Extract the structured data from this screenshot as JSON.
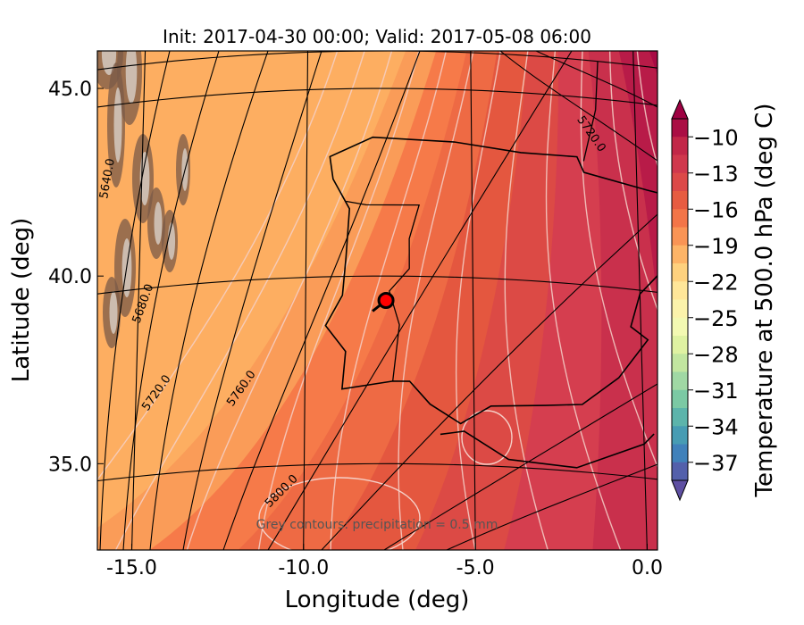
{
  "chart_data": {
    "type": "heatmap",
    "title": "Init: 2017-04-30 00:00; Valid: 2017-05-08 06:00",
    "xlabel": "Longitude (deg)",
    "ylabel": "Latitude (deg)",
    "xlim": [
      -16,
      0.3
    ],
    "ylim": [
      32.7,
      46
    ],
    "x_ticks": [
      "-15.0",
      "-10.0",
      "-5.0",
      "0.0"
    ],
    "y_ticks": [
      "45.0",
      "40.0",
      "35.0"
    ],
    "colorbar": {
      "label": "Temperature at 500.0 hPa (deg C)",
      "ticks": [
        "−10",
        "−13",
        "−16",
        "−19",
        "−22",
        "−25",
        "−28",
        "−31",
        "−34",
        "−37"
      ],
      "range": [
        -38.5,
        -8.5
      ],
      "extend": "both",
      "colormap": "Spectral_r",
      "colors": [
        "#5e4fa2",
        "#3f7fbb",
        "#4aa5b0",
        "#73c6a4",
        "#a8dba4",
        "#d8ef9c",
        "#f4f9b3",
        "#fff0a6",
        "#fed380",
        "#fcaa5f",
        "#f67a49",
        "#e4573f",
        "#d53e4f",
        "#c12648",
        "#9e0142"
      ]
    },
    "grid": true,
    "contours": {
      "geopotential_labels": [
        "5640.0",
        "5680.0",
        "5720.0",
        "5760.0",
        "5800.0",
        "5720.0"
      ],
      "note": "Grey contours: precipitation = 0.5 mm"
    },
    "marker": {
      "lon": -7.6,
      "lat": 39.35,
      "color": "#ff0000"
    }
  }
}
